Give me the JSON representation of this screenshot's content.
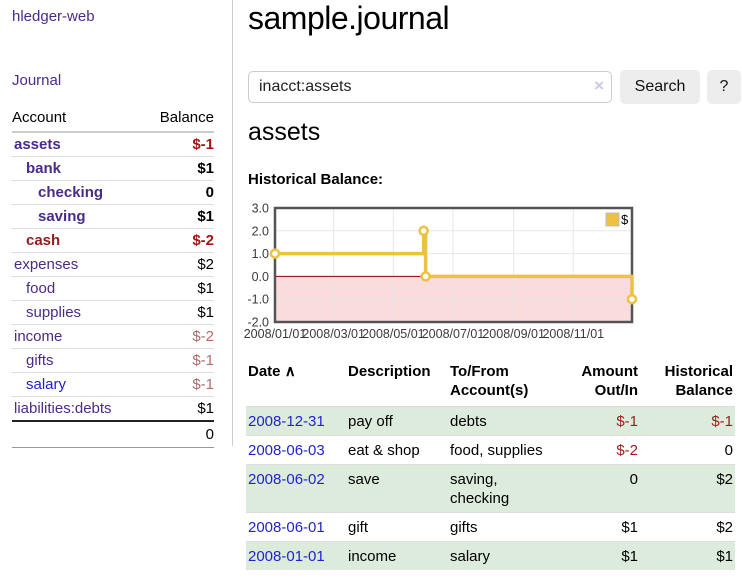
{
  "sidebar": {
    "app_title": "hledger-web",
    "journal_label": "Journal",
    "account_header": "Account",
    "balance_header": "Balance",
    "accounts": [
      {
        "name": "assets",
        "indent": 0,
        "balance": "$-1",
        "bold": true,
        "name_style": "purple",
        "balance_style": "negstrong"
      },
      {
        "name": "bank",
        "indent": 1,
        "balance": "$1",
        "bold": true,
        "name_style": "purple",
        "balance_style": "plain"
      },
      {
        "name": "checking",
        "indent": 2,
        "balance": "0",
        "bold": true,
        "name_style": "purple",
        "balance_style": "plain"
      },
      {
        "name": "saving",
        "indent": 2,
        "balance": "$1",
        "bold": true,
        "name_style": "purple",
        "balance_style": "plain"
      },
      {
        "name": "cash",
        "indent": 1,
        "balance": "$-2",
        "bold": true,
        "name_style": "maroon",
        "balance_style": "negstrong"
      },
      {
        "name": "expenses",
        "indent": 0,
        "balance": "$2",
        "bold": false,
        "name_style": "purple",
        "balance_style": "plain"
      },
      {
        "name": "food",
        "indent": 1,
        "balance": "$1",
        "bold": false,
        "name_style": "purple",
        "balance_style": "plain"
      },
      {
        "name": "supplies",
        "indent": 1,
        "balance": "$1",
        "bold": false,
        "name_style": "purple",
        "balance_style": "plain"
      },
      {
        "name": "income",
        "indent": 0,
        "balance": "$-2",
        "bold": false,
        "name_style": "purple",
        "balance_style": "negmuted"
      },
      {
        "name": "gifts",
        "indent": 1,
        "balance": "$-1",
        "bold": false,
        "name_style": "purple",
        "balance_style": "negmuted"
      },
      {
        "name": "salary",
        "indent": 1,
        "balance": "$-1",
        "bold": false,
        "name_style": "blue",
        "balance_style": "negmuted"
      },
      {
        "name": "liabilities:debts",
        "indent": 0,
        "balance": "$1",
        "bold": false,
        "name_style": "purple",
        "balance_style": "plain"
      }
    ],
    "total": "0"
  },
  "main": {
    "title": "sample.journal",
    "search": {
      "value": "inacct:assets",
      "clear_icon": "×",
      "button_label": "Search",
      "help_label": "?"
    },
    "account_heading": "assets",
    "chart_title": "Historical Balance:"
  },
  "chart_data": {
    "type": "line",
    "title": "Historical Balance:",
    "step": true,
    "series": [
      {
        "name": "$",
        "color": "#edc240",
        "points": [
          {
            "date": "2008-01-01",
            "day": 0,
            "value": 1
          },
          {
            "date": "2008-06-01",
            "day": 152,
            "value": 2
          },
          {
            "date": "2008-06-03",
            "day": 154,
            "value": 0
          },
          {
            "date": "2008-12-31",
            "day": 365,
            "value": -1
          }
        ]
      }
    ],
    "x_ticks": [
      {
        "day": 0,
        "label": "2008/01/01"
      },
      {
        "day": 60,
        "label": "2008/03/01"
      },
      {
        "day": 121,
        "label": "2008/05/01"
      },
      {
        "day": 182,
        "label": "2008/07/01"
      },
      {
        "day": 244,
        "label": "2008/09/01"
      },
      {
        "day": 305,
        "label": "2008/11/01"
      }
    ],
    "y_ticks": [
      {
        "value": 3,
        "label": "3.0"
      },
      {
        "value": 2,
        "label": "2.0"
      },
      {
        "value": 1,
        "label": "1.0"
      },
      {
        "value": 0,
        "label": "0.0"
      },
      {
        "value": -1,
        "label": "-1.0"
      },
      {
        "value": -2,
        "label": "-2.0"
      }
    ],
    "xlim_days": [
      0,
      365
    ],
    "ylim": [
      -2,
      3
    ],
    "grid": true,
    "negative_region": true,
    "legend": {
      "label": "$",
      "position": "top-right"
    }
  },
  "register": {
    "headers": {
      "date": "Date",
      "sort_icon": "∧",
      "description": "Description",
      "accounts": "To/From Account(s)",
      "amount": "Amount Out/In",
      "balance": "Historical Balance"
    },
    "rows": [
      {
        "date": "2008-12-31",
        "description": "pay off",
        "accounts": "debts",
        "amount": "$-1",
        "amount_negative": true,
        "balance": "$-1",
        "balance_negative": true,
        "shaded": true
      },
      {
        "date": "2008-06-03",
        "description": "eat & shop",
        "accounts": "food, supplies",
        "amount": "$-2",
        "amount_negative": true,
        "balance": "0",
        "balance_negative": false,
        "shaded": false
      },
      {
        "date": "2008-06-02",
        "description": "save",
        "accounts": "saving,\nchecking",
        "amount": "0",
        "amount_negative": false,
        "balance": "$2",
        "balance_negative": false,
        "shaded": true
      },
      {
        "date": "2008-06-01",
        "description": "gift",
        "accounts": "gifts",
        "amount": "$1",
        "amount_negative": false,
        "balance": "$2",
        "balance_negative": false,
        "shaded": false
      },
      {
        "date": "2008-01-01",
        "description": "income",
        "accounts": "salary",
        "amount": "$1",
        "amount_negative": false,
        "balance": "$1",
        "balance_negative": false,
        "shaded": true
      }
    ]
  },
  "colors": {
    "link_purple": "#4a2b87",
    "link_blue": "#2323cc",
    "account_negative_name": "#8f1d1d",
    "negative_strong": "#a31515",
    "negative_muted": "#b36a6a",
    "negative_table": "#9b1c1c",
    "row_shade_green": "#dcebdb",
    "chart_line": "#edc240",
    "chart_negative_region": "#fbdcdc",
    "chart_zero_line": "#8b0000",
    "chart_border": "#545454",
    "chart_grid": "#e7e7e7",
    "button_bg": "#ededed"
  }
}
